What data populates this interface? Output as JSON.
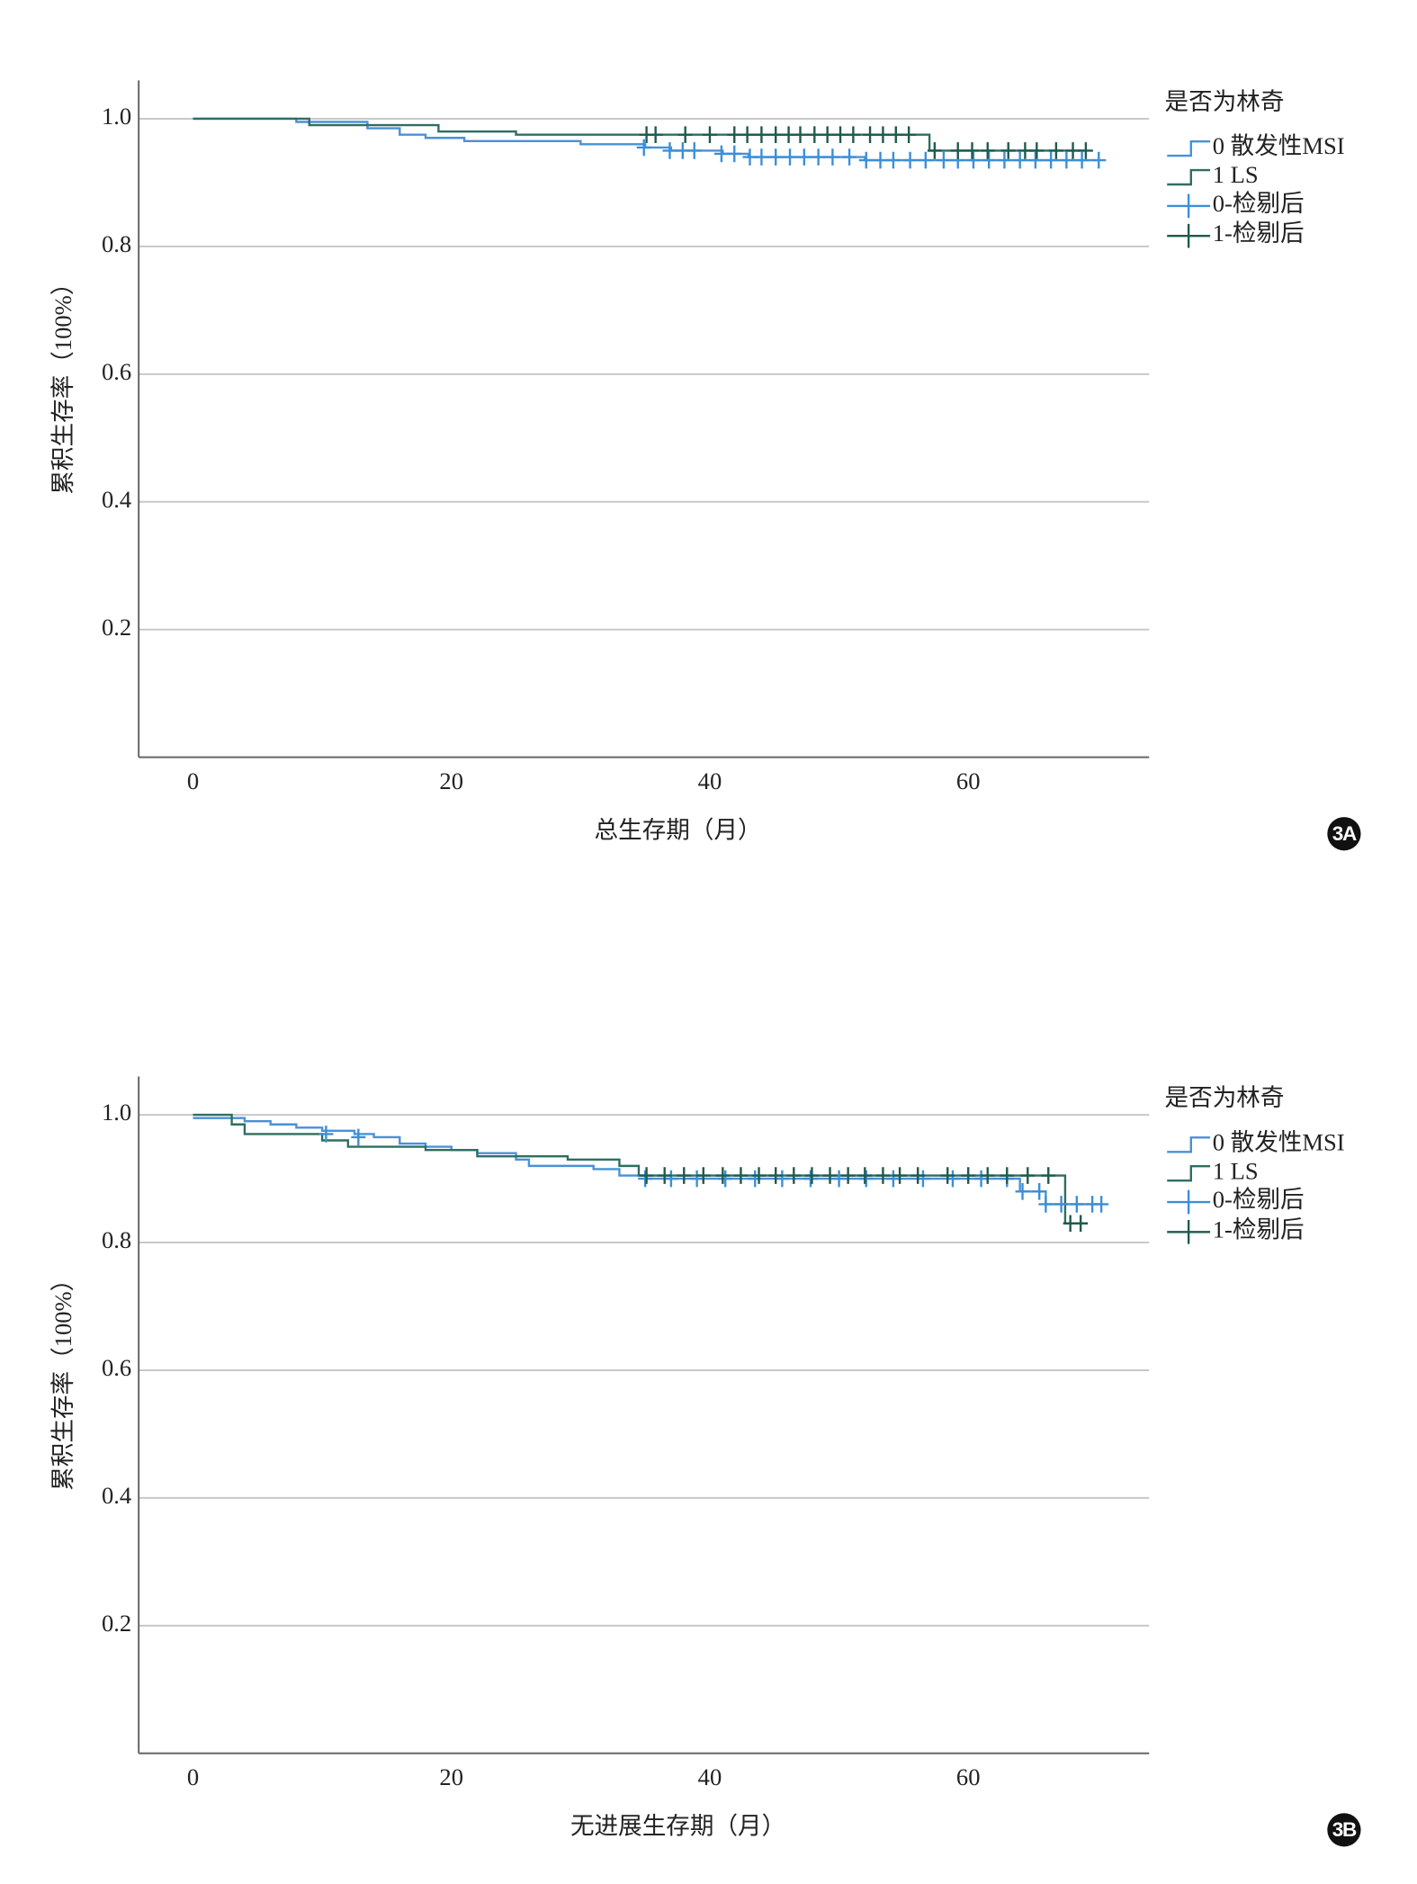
{
  "chart_data": [
    {
      "type": "line",
      "drawstyle": "steps-post",
      "panel_label": "3A",
      "x_label": "总生存期（月）",
      "y_label": "累积生存率（100%）",
      "legend_title": "是否为林奇",
      "legend_loc": "right",
      "xlim": [
        -4.2,
        74
      ],
      "xticks": [
        0,
        20,
        40,
        60
      ],
      "ylim": [
        0,
        1.06
      ],
      "yticks": [
        0.2,
        0.4,
        0.6,
        0.8,
        {
          "value": 1.0,
          "label": "1.0"
        }
      ],
      "grid": true,
      "series": [
        {
          "name": "0 散发性MSI",
          "color": "#4a90d9",
          "style": "step",
          "x": [
            0,
            8,
            13.5,
            16,
            18,
            21,
            30,
            35,
            37,
            41,
            43,
            52,
            70
          ],
          "values": [
            1,
            0.995,
            0.985,
            0.975,
            0.97,
            0.965,
            0.96,
            0.955,
            0.95,
            0.945,
            0.94,
            0.935,
            0.935
          ]
        },
        {
          "name": "1 LS",
          "color": "#2f6e62",
          "style": "step",
          "x": [
            0,
            9,
            19,
            25,
            57,
            69
          ],
          "values": [
            1,
            0.99,
            0.98,
            0.975,
            0.95,
            0.95
          ]
        },
        {
          "name": "0-检剔后",
          "color": "#3b8fd8",
          "style": "censor",
          "x": [
            34.9,
            36.9,
            37.9,
            38.8,
            40.9,
            41.9,
            43.1,
            44,
            45.1,
            46.2,
            47.3,
            48.4,
            49.5,
            50.8,
            52.1,
            53.2,
            54.2,
            55.5,
            56.7,
            58.1,
            59.2,
            60.4,
            61.6,
            62.8,
            64,
            65.2,
            66.4,
            67.6,
            68.8,
            70.1
          ],
          "values": [
            0.955,
            0.95,
            0.95,
            0.95,
            0.945,
            0.945,
            0.94,
            0.94,
            0.94,
            0.94,
            0.94,
            0.94,
            0.94,
            0.94,
            0.935,
            0.935,
            0.935,
            0.935,
            0.935,
            0.935,
            0.935,
            0.935,
            0.935,
            0.935,
            0.935,
            0.935,
            0.935,
            0.935,
            0.935,
            0.935
          ]
        },
        {
          "name": "1-检剔后",
          "color": "#1f5a4c",
          "style": "censor",
          "x": [
            35.1,
            35.8,
            38.1,
            40,
            41.9,
            42.9,
            44,
            45.1,
            46.1,
            47,
            48.1,
            49.1,
            50.1,
            51.1,
            52.4,
            53.4,
            54.4,
            55.4,
            57.4,
            59.2,
            60.3,
            61.5,
            63.1,
            64.4,
            65.3,
            66.8,
            68.1,
            69.1
          ],
          "values": [
            0.975,
            0.975,
            0.975,
            0.975,
            0.975,
            0.975,
            0.975,
            0.975,
            0.975,
            0.975,
            0.975,
            0.975,
            0.975,
            0.975,
            0.975,
            0.975,
            0.975,
            0.975,
            0.95,
            0.95,
            0.95,
            0.95,
            0.95,
            0.95,
            0.95,
            0.95,
            0.95,
            0.95
          ]
        }
      ]
    },
    {
      "type": "line",
      "drawstyle": "steps-post",
      "panel_label": "3B",
      "x_label": "无进展生存期（月）",
      "y_label": "累积生存率（100%）",
      "legend_title": "是否为林奇",
      "legend_loc": "right",
      "xlim": [
        -4.2,
        74
      ],
      "xticks": [
        0,
        20,
        40,
        60
      ],
      "ylim": [
        0,
        1.06
      ],
      "yticks": [
        0.2,
        0.4,
        0.6,
        0.8,
        {
          "value": 1.0,
          "label": "1.0"
        }
      ],
      "grid": true,
      "series": [
        {
          "name": "0 散发性MSI",
          "color": "#4a90d9",
          "style": "step",
          "x": [
            0,
            4,
            6,
            8,
            10,
            12.5,
            14,
            16,
            18,
            20,
            22,
            25,
            26,
            31,
            33,
            35,
            64,
            66,
            70
          ],
          "values": [
            0.995,
            0.99,
            0.985,
            0.98,
            0.975,
            0.97,
            0.965,
            0.955,
            0.95,
            0.945,
            0.94,
            0.93,
            0.92,
            0.915,
            0.905,
            0.9,
            0.88,
            0.86,
            0.86
          ]
        },
        {
          "name": "1 LS",
          "color": "#2f6e62",
          "style": "step",
          "x": [
            0,
            3,
            4,
            10,
            12,
            18,
            22,
            29,
            33,
            34.5,
            67.5,
            69
          ],
          "values": [
            1,
            0.985,
            0.97,
            0.96,
            0.95,
            0.945,
            0.935,
            0.93,
            0.92,
            0.905,
            0.83,
            0.83
          ]
        },
        {
          "name": "0-检剔后",
          "color": "#3b8fd8",
          "style": "censor",
          "x": [
            10.3,
            12.8,
            35,
            37,
            39,
            41.2,
            43.5,
            45.6,
            47.8,
            50,
            52.1,
            54.2,
            56.5,
            58.8,
            61,
            63,
            64.2,
            65.5,
            66,
            67.2,
            68.4,
            69.6,
            70.3
          ],
          "values": [
            0.97,
            0.965,
            0.9,
            0.9,
            0.9,
            0.9,
            0.9,
            0.9,
            0.9,
            0.9,
            0.9,
            0.9,
            0.9,
            0.9,
            0.9,
            0.9,
            0.88,
            0.88,
            0.86,
            0.86,
            0.86,
            0.86,
            0.86
          ]
        },
        {
          "name": "1-检剔后",
          "color": "#1f5a4c",
          "style": "censor",
          "x": [
            35.1,
            36.5,
            38,
            39.5,
            41,
            42.4,
            43.8,
            45.1,
            46.5,
            47.9,
            49.3,
            50.7,
            52,
            53.4,
            54.7,
            56.1,
            58.4,
            60,
            61.5,
            63,
            64.6,
            66.2,
            67.9,
            68.7
          ],
          "values": [
            0.905,
            0.905,
            0.905,
            0.905,
            0.905,
            0.905,
            0.905,
            0.905,
            0.905,
            0.905,
            0.905,
            0.905,
            0.905,
            0.905,
            0.905,
            0.905,
            0.905,
            0.905,
            0.905,
            0.905,
            0.905,
            0.905,
            0.83,
            0.83
          ]
        }
      ]
    }
  ]
}
